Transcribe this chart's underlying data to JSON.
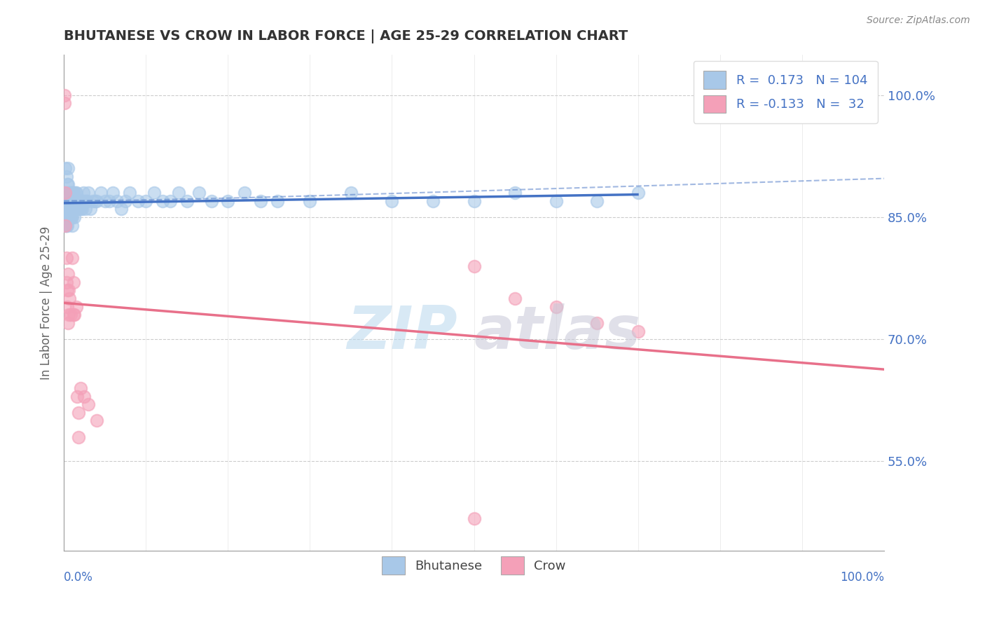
{
  "title": "BHUTANESE VS CROW IN LABOR FORCE | AGE 25-29 CORRELATION CHART",
  "source": "Source: ZipAtlas.com",
  "ylabel": "In Labor Force | Age 25-29",
  "yticks": [
    "55.0%",
    "70.0%",
    "85.0%",
    "100.0%"
  ],
  "ytick_values": [
    0.55,
    0.7,
    0.85,
    1.0
  ],
  "xmin": 0.0,
  "xmax": 1.0,
  "ymin": 0.44,
  "ymax": 1.05,
  "legend_bhutanese": {
    "R": 0.173,
    "N": 104
  },
  "legend_crow": {
    "R": -0.133,
    "N": 32
  },
  "bhutanese_color": "#a8c8e8",
  "crow_color": "#f4a0b8",
  "trend_blue": "#4472c4",
  "trend_pink": "#e8708a",
  "watermark_zip": "ZIP",
  "watermark_atlas": "atlas",
  "bhutanese_points": [
    [
      0.001,
      0.87
    ],
    [
      0.001,
      0.86
    ],
    [
      0.002,
      0.91
    ],
    [
      0.002,
      0.88
    ],
    [
      0.002,
      0.86
    ],
    [
      0.002,
      0.84
    ],
    [
      0.003,
      0.9
    ],
    [
      0.003,
      0.87
    ],
    [
      0.003,
      0.86
    ],
    [
      0.003,
      0.85
    ],
    [
      0.003,
      0.84
    ],
    [
      0.004,
      0.89
    ],
    [
      0.004,
      0.87
    ],
    [
      0.004,
      0.85
    ],
    [
      0.004,
      0.84
    ],
    [
      0.005,
      0.91
    ],
    [
      0.005,
      0.89
    ],
    [
      0.005,
      0.87
    ],
    [
      0.005,
      0.85
    ],
    [
      0.006,
      0.88
    ],
    [
      0.006,
      0.86
    ],
    [
      0.006,
      0.85
    ],
    [
      0.007,
      0.87
    ],
    [
      0.007,
      0.86
    ],
    [
      0.007,
      0.85
    ],
    [
      0.008,
      0.88
    ],
    [
      0.008,
      0.86
    ],
    [
      0.008,
      0.85
    ],
    [
      0.009,
      0.87
    ],
    [
      0.009,
      0.86
    ],
    [
      0.009,
      0.85
    ],
    [
      0.01,
      0.88
    ],
    [
      0.01,
      0.87
    ],
    [
      0.01,
      0.86
    ],
    [
      0.01,
      0.85
    ],
    [
      0.01,
      0.84
    ],
    [
      0.011,
      0.88
    ],
    [
      0.011,
      0.87
    ],
    [
      0.011,
      0.86
    ],
    [
      0.012,
      0.88
    ],
    [
      0.012,
      0.87
    ],
    [
      0.012,
      0.86
    ],
    [
      0.013,
      0.87
    ],
    [
      0.013,
      0.86
    ],
    [
      0.013,
      0.85
    ],
    [
      0.014,
      0.88
    ],
    [
      0.014,
      0.87
    ],
    [
      0.014,
      0.86
    ],
    [
      0.015,
      0.88
    ],
    [
      0.015,
      0.87
    ],
    [
      0.015,
      0.86
    ],
    [
      0.016,
      0.87
    ],
    [
      0.016,
      0.86
    ],
    [
      0.017,
      0.87
    ],
    [
      0.017,
      0.86
    ],
    [
      0.018,
      0.87
    ],
    [
      0.018,
      0.86
    ],
    [
      0.019,
      0.87
    ],
    [
      0.02,
      0.87
    ],
    [
      0.02,
      0.86
    ],
    [
      0.021,
      0.87
    ],
    [
      0.022,
      0.87
    ],
    [
      0.022,
      0.86
    ],
    [
      0.023,
      0.87
    ],
    [
      0.024,
      0.88
    ],
    [
      0.025,
      0.87
    ],
    [
      0.026,
      0.86
    ],
    [
      0.027,
      0.87
    ],
    [
      0.028,
      0.87
    ],
    [
      0.03,
      0.88
    ],
    [
      0.032,
      0.86
    ],
    [
      0.035,
      0.87
    ],
    [
      0.038,
      0.87
    ],
    [
      0.04,
      0.87
    ],
    [
      0.045,
      0.88
    ],
    [
      0.05,
      0.87
    ],
    [
      0.055,
      0.87
    ],
    [
      0.06,
      0.88
    ],
    [
      0.065,
      0.87
    ],
    [
      0.07,
      0.86
    ],
    [
      0.075,
      0.87
    ],
    [
      0.08,
      0.88
    ],
    [
      0.09,
      0.87
    ],
    [
      0.1,
      0.87
    ],
    [
      0.11,
      0.88
    ],
    [
      0.12,
      0.87
    ],
    [
      0.13,
      0.87
    ],
    [
      0.14,
      0.88
    ],
    [
      0.15,
      0.87
    ],
    [
      0.165,
      0.88
    ],
    [
      0.18,
      0.87
    ],
    [
      0.2,
      0.87
    ],
    [
      0.22,
      0.88
    ],
    [
      0.24,
      0.87
    ],
    [
      0.26,
      0.87
    ],
    [
      0.3,
      0.87
    ],
    [
      0.35,
      0.88
    ],
    [
      0.4,
      0.87
    ],
    [
      0.45,
      0.87
    ],
    [
      0.5,
      0.87
    ],
    [
      0.55,
      0.88
    ],
    [
      0.6,
      0.87
    ],
    [
      0.65,
      0.87
    ],
    [
      0.7,
      0.88
    ]
  ],
  "crow_points": [
    [
      0.001,
      1.0
    ],
    [
      0.001,
      0.99
    ],
    [
      0.002,
      0.88
    ],
    [
      0.002,
      0.84
    ],
    [
      0.003,
      0.8
    ],
    [
      0.003,
      0.77
    ],
    [
      0.004,
      0.76
    ],
    [
      0.004,
      0.74
    ],
    [
      0.005,
      0.78
    ],
    [
      0.005,
      0.72
    ],
    [
      0.006,
      0.76
    ],
    [
      0.006,
      0.73
    ],
    [
      0.007,
      0.75
    ],
    [
      0.008,
      0.73
    ],
    [
      0.01,
      0.8
    ],
    [
      0.012,
      0.77
    ],
    [
      0.012,
      0.73
    ],
    [
      0.013,
      0.73
    ],
    [
      0.015,
      0.74
    ],
    [
      0.016,
      0.63
    ],
    [
      0.018,
      0.61
    ],
    [
      0.018,
      0.58
    ],
    [
      0.02,
      0.64
    ],
    [
      0.025,
      0.63
    ],
    [
      0.03,
      0.62
    ],
    [
      0.04,
      0.6
    ],
    [
      0.5,
      0.79
    ],
    [
      0.55,
      0.75
    ],
    [
      0.6,
      0.74
    ],
    [
      0.65,
      0.72
    ],
    [
      0.7,
      0.71
    ],
    [
      0.5,
      0.48
    ]
  ]
}
